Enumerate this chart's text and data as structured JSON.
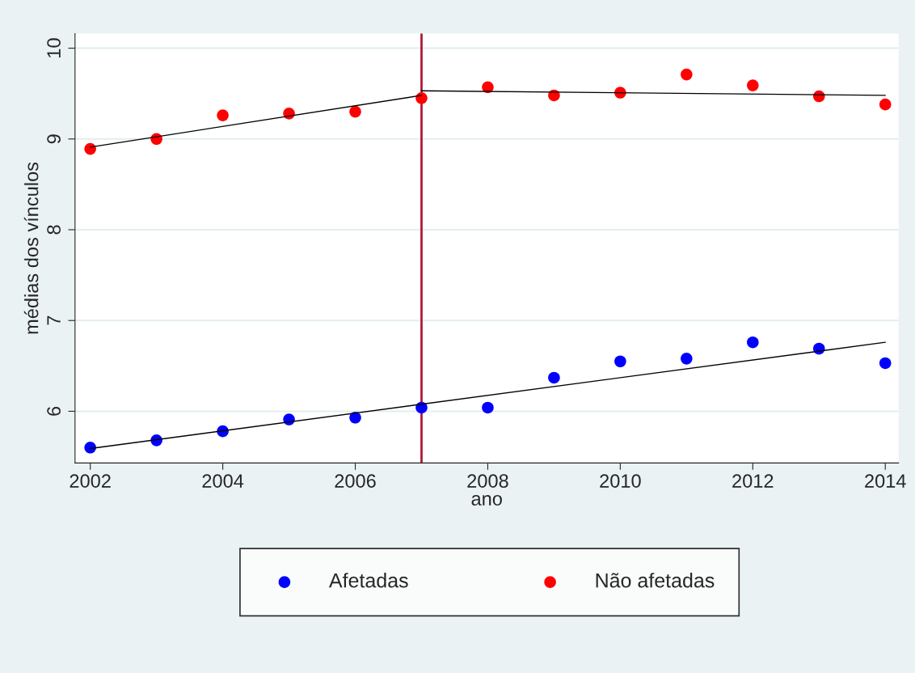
{
  "chart_data": {
    "type": "scatter",
    "xlabel": "ano",
    "ylabel": "médias dos vínculos",
    "x": [
      2002,
      2003,
      2004,
      2005,
      2006,
      2007,
      2008,
      2009,
      2010,
      2011,
      2012,
      2013,
      2014
    ],
    "series": [
      {
        "name": "Afetadas",
        "color": "#0000ff",
        "values": [
          5.6,
          5.68,
          5.78,
          5.91,
          5.93,
          6.04,
          6.04,
          6.37,
          6.55,
          6.58,
          6.76,
          6.69,
          6.53
        ]
      },
      {
        "name": "Não afetadas",
        "color": "#ff0000",
        "values": [
          8.89,
          9.0,
          9.26,
          9.28,
          9.3,
          9.45,
          9.57,
          9.48,
          9.51,
          9.71,
          9.59,
          9.47,
          9.38
        ]
      },
      {
        "type": "line",
        "marker": "none",
        "color": "#000000",
        "x": [
          2002,
          2007
        ],
        "values": [
          8.91,
          9.48
        ]
      },
      {
        "type": "line",
        "marker": "none",
        "color": "#000000",
        "x": [
          2007,
          2014
        ],
        "values": [
          9.53,
          9.48
        ]
      },
      {
        "type": "line",
        "marker": "none",
        "color": "#000000",
        "x": [
          2002,
          2014
        ],
        "values": [
          5.59,
          6.76
        ]
      }
    ],
    "xlim": [
      2001.77,
      2014.2
    ],
    "ylim": [
      5.43,
      10.16
    ],
    "xticks": [
      2002,
      2004,
      2006,
      2008,
      2010,
      2012,
      2014
    ],
    "yticks": [
      6,
      7,
      8,
      9,
      10
    ],
    "ref_lines": [
      {
        "axis": "x",
        "value": 2007,
        "color": "#b0183a"
      }
    ],
    "grid": "y",
    "legend": "bottom",
    "marker": "circle"
  }
}
